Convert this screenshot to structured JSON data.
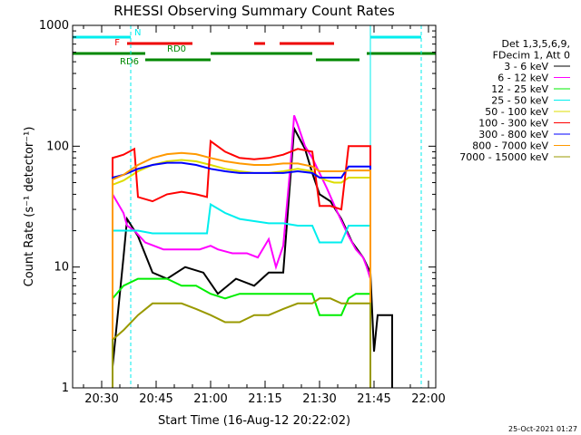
{
  "chart_data": {
    "type": "line",
    "title": "RHESSI Observing Summary Count Rates",
    "xlabel": "Start Time (16-Aug-12 20:22:02)",
    "ylabel": "Count Rate (s⁻¹ detector⁻¹)",
    "yscale": "log",
    "ylim": [
      1,
      1000
    ],
    "xlim_min": [
      22,
      122
    ],
    "x_ticks": [
      {
        "min": 30,
        "label": "20:30"
      },
      {
        "min": 45,
        "label": "20:45"
      },
      {
        "min": 60,
        "label": "21:00"
      },
      {
        "min": 75,
        "label": "21:15"
      },
      {
        "min": 90,
        "label": "21:30"
      },
      {
        "min": 105,
        "label": "21:45"
      },
      {
        "min": 120,
        "label": "22:00"
      }
    ],
    "y_ticks": [
      {
        "value": 1,
        "label": "1"
      },
      {
        "value": 10,
        "label": "10"
      },
      {
        "value": 100,
        "label": "100"
      },
      {
        "value": 1000,
        "label": "1000"
      }
    ],
    "legend_header": [
      "Det 1,3,5,6,9,",
      "FDecim 1, Att 0"
    ],
    "legend_position": "right",
    "series": [
      {
        "name": "3 - 6 keV",
        "color": "#000000",
        "points": [
          [
            33,
            1.5
          ],
          [
            36,
            12
          ],
          [
            37,
            25
          ],
          [
            40,
            18
          ],
          [
            44,
            9
          ],
          [
            48,
            8
          ],
          [
            53,
            10
          ],
          [
            58,
            9
          ],
          [
            62,
            6
          ],
          [
            67,
            8
          ],
          [
            72,
            7
          ],
          [
            76,
            9
          ],
          [
            80,
            9
          ],
          [
            83,
            140
          ],
          [
            86,
            95
          ],
          [
            88,
            60
          ],
          [
            90,
            40
          ],
          [
            93,
            35
          ],
          [
            96,
            25
          ],
          [
            99,
            16
          ],
          [
            102,
            12
          ],
          [
            104,
            9
          ],
          [
            105,
            2
          ],
          [
            106,
            4
          ],
          [
            110,
            4
          ]
        ]
      },
      {
        "name": "6 - 12 keV",
        "color": "#ff00ff",
        "points": [
          [
            33,
            40
          ],
          [
            36,
            28
          ],
          [
            37,
            22
          ],
          [
            39,
            20
          ],
          [
            42,
            16
          ],
          [
            47,
            14
          ],
          [
            52,
            14
          ],
          [
            57,
            14
          ],
          [
            60,
            15
          ],
          [
            62,
            14
          ],
          [
            66,
            13
          ],
          [
            70,
            13
          ],
          [
            73,
            12
          ],
          [
            76,
            17
          ],
          [
            78,
            10
          ],
          [
            80,
            15
          ],
          [
            82,
            70
          ],
          [
            83,
            180
          ],
          [
            84,
            150
          ],
          [
            86,
            100
          ],
          [
            88,
            80
          ],
          [
            90,
            60
          ],
          [
            92,
            45
          ],
          [
            95,
            28
          ],
          [
            98,
            18
          ],
          [
            100,
            14
          ],
          [
            102,
            12
          ],
          [
            103,
            10
          ],
          [
            104,
            8
          ]
        ]
      },
      {
        "name": "12 - 25 keV",
        "color": "#00ee00",
        "points": [
          [
            33,
            5.5
          ],
          [
            36,
            7
          ],
          [
            40,
            8
          ],
          [
            44,
            8
          ],
          [
            48,
            8
          ],
          [
            52,
            7
          ],
          [
            56,
            7
          ],
          [
            60,
            6
          ],
          [
            64,
            5.5
          ],
          [
            68,
            6
          ],
          [
            72,
            6
          ],
          [
            76,
            6
          ],
          [
            80,
            6
          ],
          [
            84,
            6
          ],
          [
            88,
            6
          ],
          [
            90,
            4
          ],
          [
            92,
            4
          ],
          [
            94,
            4
          ],
          [
            96,
            4
          ],
          [
            98,
            5.5
          ],
          [
            100,
            6
          ],
          [
            103,
            6
          ],
          [
            104,
            6
          ]
        ]
      },
      {
        "name": "25 - 50 keV",
        "color": "#00eeee",
        "points": [
          [
            33,
            20
          ],
          [
            37,
            20
          ],
          [
            40,
            20
          ],
          [
            44,
            19
          ],
          [
            48,
            19
          ],
          [
            52,
            19
          ],
          [
            56,
            19
          ],
          [
            59,
            19
          ],
          [
            60,
            33
          ],
          [
            64,
            28
          ],
          [
            68,
            25
          ],
          [
            72,
            24
          ],
          [
            76,
            23
          ],
          [
            80,
            23
          ],
          [
            84,
            22
          ],
          [
            88,
            22
          ],
          [
            90,
            16
          ],
          [
            93,
            16
          ],
          [
            96,
            16
          ],
          [
            98,
            22
          ],
          [
            101,
            22
          ],
          [
            103,
            22
          ],
          [
            104,
            22
          ]
        ]
      },
      {
        "name": "50 - 100 keV",
        "color": "#dddd00",
        "points": [
          [
            33,
            48
          ],
          [
            36,
            52
          ],
          [
            40,
            62
          ],
          [
            44,
            70
          ],
          [
            48,
            75
          ],
          [
            52,
            77
          ],
          [
            56,
            75
          ],
          [
            60,
            70
          ],
          [
            64,
            65
          ],
          [
            68,
            62
          ],
          [
            72,
            60
          ],
          [
            76,
            60
          ],
          [
            80,
            62
          ],
          [
            84,
            65
          ],
          [
            88,
            62
          ],
          [
            90,
            55
          ],
          [
            92,
            52
          ],
          [
            94,
            50
          ],
          [
            96,
            50
          ],
          [
            98,
            55
          ],
          [
            100,
            55
          ],
          [
            103,
            55
          ],
          [
            104,
            55
          ]
        ]
      },
      {
        "name": "100 - 300 keV",
        "color": "#ff0000",
        "points": [
          [
            33,
            80
          ],
          [
            36,
            85
          ],
          [
            39,
            95
          ],
          [
            40,
            38
          ],
          [
            44,
            35
          ],
          [
            48,
            40
          ],
          [
            52,
            42
          ],
          [
            56,
            40
          ],
          [
            59,
            38
          ],
          [
            60,
            110
          ],
          [
            64,
            90
          ],
          [
            68,
            80
          ],
          [
            72,
            78
          ],
          [
            76,
            80
          ],
          [
            80,
            85
          ],
          [
            84,
            95
          ],
          [
            88,
            90
          ],
          [
            90,
            32
          ],
          [
            93,
            32
          ],
          [
            96,
            30
          ],
          [
            98,
            100
          ],
          [
            101,
            100
          ],
          [
            103,
            100
          ],
          [
            104,
            100
          ]
        ]
      },
      {
        "name": "300 - 800 keV",
        "color": "#0000ff",
        "points": [
          [
            33,
            55
          ],
          [
            36,
            58
          ],
          [
            40,
            65
          ],
          [
            44,
            70
          ],
          [
            48,
            73
          ],
          [
            52,
            73
          ],
          [
            56,
            70
          ],
          [
            60,
            65
          ],
          [
            64,
            62
          ],
          [
            68,
            60
          ],
          [
            72,
            60
          ],
          [
            76,
            60
          ],
          [
            80,
            60
          ],
          [
            84,
            62
          ],
          [
            88,
            60
          ],
          [
            90,
            55
          ],
          [
            92,
            55
          ],
          [
            94,
            55
          ],
          [
            96,
            55
          ],
          [
            98,
            68
          ],
          [
            101,
            68
          ],
          [
            104,
            68
          ]
        ]
      },
      {
        "name": "800 - 7000 keV",
        "color": "#ff9900",
        "points": [
          [
            33,
            53
          ],
          [
            36,
            58
          ],
          [
            40,
            70
          ],
          [
            44,
            80
          ],
          [
            48,
            86
          ],
          [
            52,
            88
          ],
          [
            56,
            86
          ],
          [
            60,
            80
          ],
          [
            64,
            75
          ],
          [
            68,
            72
          ],
          [
            72,
            70
          ],
          [
            76,
            70
          ],
          [
            80,
            72
          ],
          [
            84,
            72
          ],
          [
            88,
            68
          ],
          [
            90,
            62
          ],
          [
            92,
            62
          ],
          [
            94,
            62
          ],
          [
            96,
            62
          ],
          [
            98,
            63
          ],
          [
            101,
            63
          ],
          [
            104,
            63
          ]
        ]
      },
      {
        "name": "7000 - 15000 keV",
        "color": "#999900",
        "points": [
          [
            33,
            2.5
          ],
          [
            36,
            3
          ],
          [
            40,
            4
          ],
          [
            44,
            5
          ],
          [
            48,
            5
          ],
          [
            52,
            5
          ],
          [
            56,
            4.5
          ],
          [
            60,
            4
          ],
          [
            64,
            3.5
          ],
          [
            68,
            3.5
          ],
          [
            72,
            4
          ],
          [
            76,
            4
          ],
          [
            80,
            4.5
          ],
          [
            84,
            5
          ],
          [
            88,
            5
          ],
          [
            90,
            5.5
          ],
          [
            93,
            5.5
          ],
          [
            96,
            5
          ],
          [
            98,
            5
          ],
          [
            101,
            5
          ],
          [
            104,
            5
          ]
        ]
      }
    ],
    "vertical_lines": [
      {
        "min": 22,
        "color": "#00eeee",
        "style": "solid"
      },
      {
        "min": 38,
        "color": "#00eeee",
        "style": "dashed"
      },
      {
        "min": 104,
        "color": "#00eeee",
        "style": "solid"
      },
      {
        "min": 118,
        "color": "#00eeee",
        "style": "dashed"
      }
    ],
    "flag_bars": [
      {
        "label": "N",
        "color": "#00eeee",
        "row": 1,
        "label_at_min": 39,
        "spans": [
          [
            22,
            38
          ],
          [
            104,
            118
          ]
        ]
      },
      {
        "label": "F",
        "color": "#ee0000",
        "row": 2,
        "label_at_min": 35,
        "spans": [
          [
            37,
            55
          ],
          [
            72,
            75
          ],
          [
            79,
            94
          ]
        ]
      },
      {
        "label": "RD0",
        "color": "#008800",
        "row": 3,
        "label_at_min": 48,
        "spans": [
          [
            22,
            42
          ],
          [
            60,
            88
          ],
          [
            103,
            122
          ]
        ]
      },
      {
        "label": "RD6",
        "color": "#008800",
        "row": 4,
        "label_at_min": 35,
        "spans": [
          [
            42,
            60
          ],
          [
            89,
            101
          ]
        ]
      }
    ]
  },
  "timestamp": "25-Oct-2021 01:27"
}
